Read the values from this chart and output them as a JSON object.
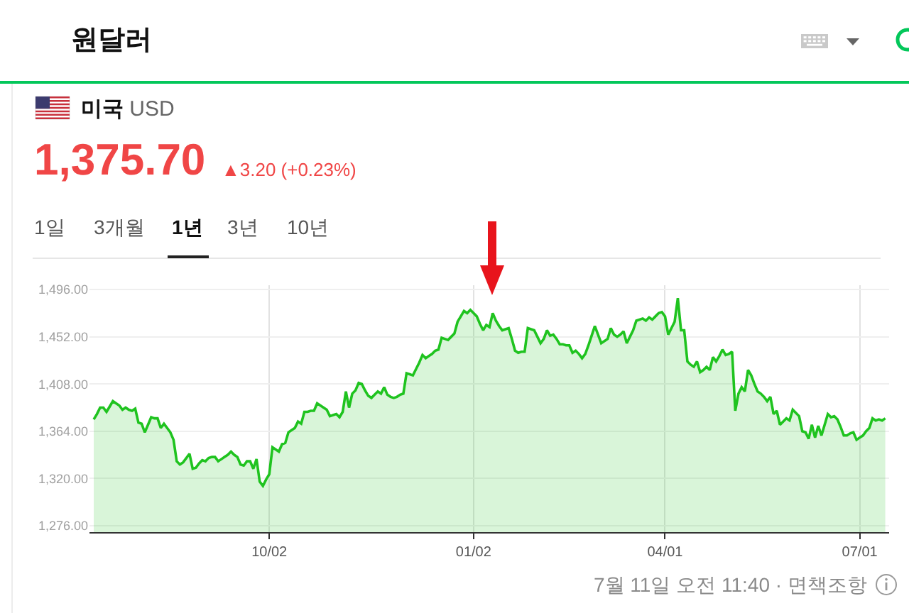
{
  "chart_data": {
    "type": "area",
    "title": "미국 USD",
    "subtitle": "1,375.70",
    "annotations": [
      "원달러",
      "▲3.20 (+0.23%)",
      "1일",
      "3개월",
      "1년",
      "3년",
      "10년",
      "7월 11일 오전 11:40 · 면책조항"
    ],
    "categories": [
      null,
      null,
      null,
      null,
      null,
      null,
      null,
      null,
      null,
      null,
      null,
      null,
      null,
      null,
      null,
      null,
      null,
      null,
      null,
      null,
      null,
      null,
      null,
      null,
      null,
      null,
      null,
      null,
      null,
      null,
      null,
      null,
      null,
      null,
      null,
      null,
      null,
      null,
      null,
      null,
      null,
      null,
      null,
      null,
      null,
      null,
      null,
      null,
      null,
      null,
      null,
      null,
      null,
      null,
      null,
      "10/02",
      null,
      null,
      null,
      null,
      null,
      null,
      null,
      null,
      null,
      null,
      null,
      null,
      null,
      null,
      null,
      null,
      null,
      null,
      null,
      null,
      null,
      null,
      null,
      null,
      null,
      null,
      null,
      null,
      null,
      null,
      null,
      null,
      null,
      null,
      null,
      null,
      null,
      null,
      null,
      null,
      null,
      null,
      null,
      null,
      null,
      null,
      null,
      null,
      null,
      null,
      null,
      null,
      null,
      null,
      null,
      null,
      null,
      null,
      null,
      null,
      null,
      null,
      null,
      "01/02",
      null,
      null,
      null,
      null,
      null,
      null,
      null,
      null,
      null,
      null,
      null,
      null,
      null,
      null,
      null,
      null,
      null,
      null,
      null,
      null,
      null,
      null,
      null,
      null,
      null,
      null,
      null,
      null,
      null,
      null,
      null,
      null,
      null,
      null,
      null,
      null,
      null,
      null,
      null,
      null,
      null,
      null,
      null,
      null,
      null,
      null,
      null,
      null,
      null,
      null,
      null,
      null,
      null,
      null,
      null,
      null,
      null,
      null,
      null,
      "04/01",
      null,
      null,
      null,
      null,
      null,
      null,
      null,
      null,
      null,
      null,
      null,
      null,
      null,
      null,
      null,
      null,
      null,
      null,
      null,
      null,
      null,
      null,
      null,
      null,
      null,
      null,
      null,
      null,
      null,
      null,
      null,
      null,
      null,
      null,
      null,
      null,
      null,
      null,
      null,
      null,
      null,
      null,
      null,
      null,
      null,
      null,
      null,
      null,
      null,
      null,
      null,
      null,
      null,
      null,
      null,
      null,
      null,
      null,
      null,
      null,
      "07/01",
      null,
      null,
      null,
      null,
      null,
      null,
      null,
      null
    ],
    "values": [
      1375,
      1380,
      1386,
      1386,
      1382,
      1387,
      1392,
      1390,
      1388,
      1384,
      1386,
      1384,
      1383,
      1385,
      1372,
      1371,
      1363,
      1370,
      1377,
      1376,
      1376,
      1367,
      1371,
      1367,
      1363,
      1356,
      1336,
      1333,
      1335,
      1339,
      1343,
      1329,
      1330,
      1334,
      1337,
      1336,
      1339,
      1340,
      1340,
      1336,
      1338,
      1340,
      1342,
      1345,
      1342,
      1340,
      1333,
      1332,
      1336,
      1336,
      1329,
      1338,
      1317,
      1313,
      1319,
      1324,
      1349,
      1347,
      1345,
      1352,
      1353,
      1363,
      1365,
      1367,
      1373,
      1371,
      1382,
      1382,
      1383,
      1383,
      1390,
      1388,
      1386,
      1384,
      1378,
      1379,
      1380,
      1377,
      1382,
      1401,
      1386,
      1399,
      1402,
      1409,
      1408,
      1402,
      1397,
      1395,
      1398,
      1401,
      1399,
      1405,
      1398,
      1396,
      1395,
      1396,
      1398,
      1399,
      1418,
      1417,
      1416,
      1422,
      1428,
      1435,
      1432,
      1434,
      1436,
      1439,
      1440,
      1451,
      1450,
      1449,
      1452,
      1455,
      1466,
      1471,
      1476,
      1474,
      1477,
      1474,
      1471,
      1464,
      1458,
      1463,
      1461,
      1474,
      1467,
      1462,
      1458,
      1459,
      1460,
      1450,
      1439,
      1437,
      1438,
      1438,
      1460,
      1459,
      1458,
      1452,
      1446,
      1450,
      1458,
      1453,
      1454,
      1450,
      1445,
      1445,
      1444,
      1444,
      1437,
      1439,
      1436,
      1432,
      1436,
      1444,
      1453,
      1462,
      1454,
      1446,
      1448,
      1450,
      1460,
      1454,
      1452,
      1454,
      1457,
      1446,
      1452,
      1458,
      1467,
      1468,
      1469,
      1467,
      1470,
      1468,
      1471,
      1474,
      1475,
      1471,
      1454,
      1460,
      1466,
      1488,
      1458,
      1458,
      1429,
      1426,
      1424,
      1429,
      1419,
      1421,
      1424,
      1421,
      1433,
      1429,
      1434,
      1440,
      1435,
      1436,
      1438,
      1383,
      1399,
      1405,
      1401,
      1421,
      1416,
      1408,
      1401,
      1399,
      1396,
      1392,
      1396,
      1380,
      1383,
      1370,
      1373,
      1376,
      1374,
      1384,
      1381,
      1378,
      1364,
      1363,
      1357,
      1370,
      1358,
      1369,
      1360,
      1370,
      1380,
      1377,
      1378,
      1375,
      1368,
      1360,
      1360,
      1362,
      1363,
      1356,
      1358,
      1360,
      1364,
      1367,
      1376,
      1374,
      1375,
      1374,
      1376
    ],
    "color": "#1fc31f",
    "ylim": [
      1270,
      1500
    ],
    "yticks": [
      {
        "value": 1276,
        "label": "1,276.00"
      },
      {
        "value": 1320,
        "label": "1,320.00"
      },
      {
        "value": 1364,
        "label": "1,364.00"
      },
      {
        "value": 1408,
        "label": "1,408.00"
      },
      {
        "value": 1452,
        "label": "1,452.00"
      },
      {
        "value": 1496,
        "label": "1,496.00"
      }
    ],
    "grid": true
  }
}
